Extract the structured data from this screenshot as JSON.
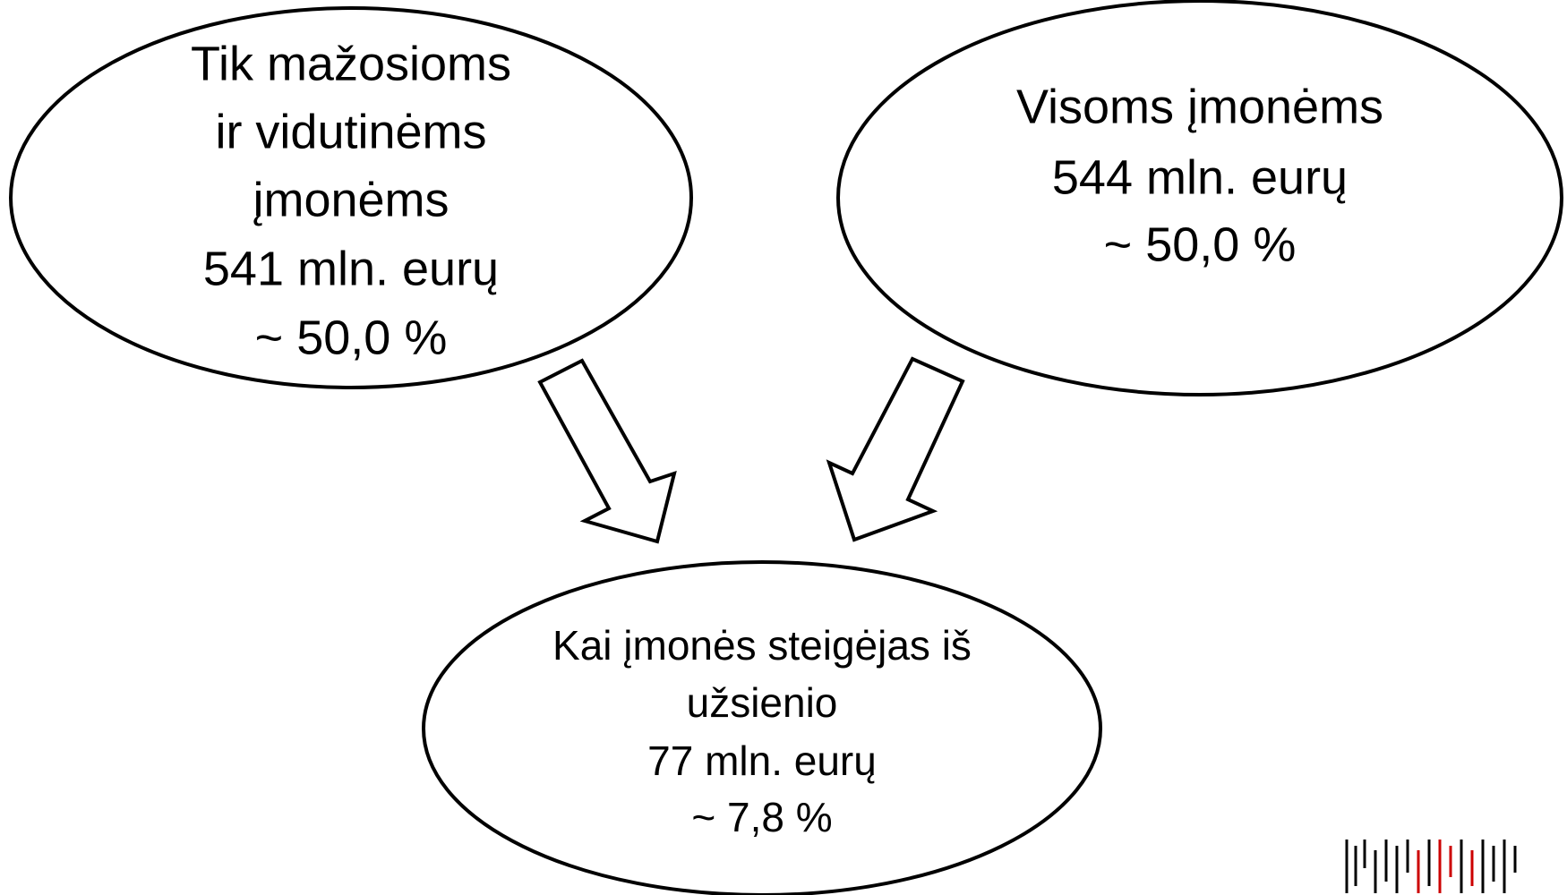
{
  "nodes": [
    {
      "lines": [
        "Tik mažosioms",
        "ir vidutinėms",
        "įmonėms",
        "541 mln. eurų",
        "~ 50,0 %"
      ]
    },
    {
      "lines": [
        "Visoms įmonėms",
        "544 mln. eurų",
        "~ 50,0 %"
      ]
    },
    {
      "lines": [
        "Kai įmonės steigėjas iš",
        "užsienio",
        "77 mln. eurų",
        "~ 7,8 %"
      ]
    }
  ]
}
